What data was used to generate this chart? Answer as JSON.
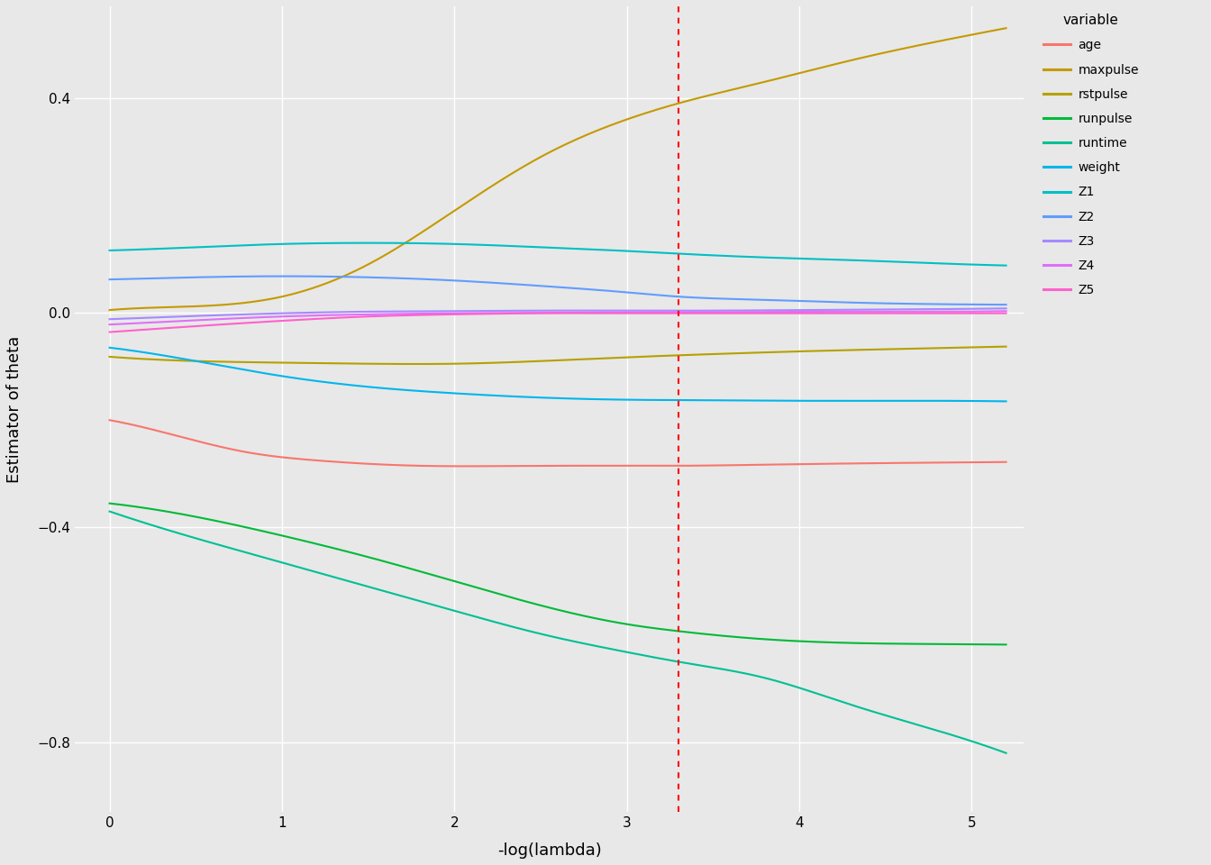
{
  "xlabel": "-log(lambda)",
  "ylabel": "Estimator of theta",
  "xlim": [
    -0.2,
    5.3
  ],
  "ylim": [
    -0.93,
    0.57
  ],
  "vline_x": 3.3,
  "background_color": "#E8E8E8",
  "grid_color": "#FFFFFF",
  "variables": [
    "age",
    "maxpulse",
    "rstpulse",
    "runpulse",
    "runtime",
    "weight",
    "Z1",
    "Z2",
    "Z3",
    "Z4",
    "Z5"
  ],
  "colors": {
    "age": "#F8766D",
    "maxpulse": "#C49A00",
    "rstpulse": "#999900",
    "runpulse": "#00BA38",
    "runtime": "#00C094",
    "weight": "#00B6EB",
    "Z1": "#06A4FF",
    "Z2": "#A58AFF",
    "Z3": "#FB61D7",
    "Z4": "#DF70F8",
    "Z5": "#FF61CC"
  },
  "xticks": [
    0,
    1,
    2,
    3,
    4,
    5
  ],
  "yticks": [
    -0.8,
    -0.4,
    0.0,
    0.4
  ],
  "legend_title": "variable"
}
